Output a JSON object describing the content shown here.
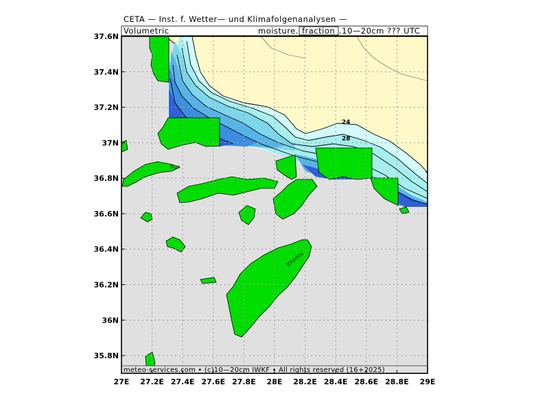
{
  "header": {
    "line1": "CETA — Inst. f. Wetter— und Klimafolgenanalysen —",
    "left_label": "Volumetric",
    "right_label_prefix": "moisture.",
    "right_label_boxed": "fraction",
    "right_label_suffix": ".10—20cm  ???  UTC"
  },
  "footer": {
    "text": "meteo-services.com  •  (c)10—20cm  IWKF  •  All rights reserved  (16+2025)"
  },
  "axes": {
    "x_ticks": [
      "27E",
      "27.2E",
      "27.4E",
      "27.6E",
      "27.8E",
      "28E",
      "28.2E",
      "28.4E",
      "28.6E",
      "28.8E",
      "29E"
    ],
    "y_ticks": [
      "37.6N",
      "37.4N",
      "37.2N",
      "37N",
      "36.8N",
      "36.6N",
      "36.4N",
      "36.2N",
      "36N",
      "35.8N"
    ],
    "lon_range": [
      27,
      29
    ],
    "lat_range": [
      35.7,
      37.6
    ],
    "grid": true
  },
  "map": {
    "place_labels": {
      "kos": "Kos",
      "rhodos": "Rhodos"
    },
    "contour_labels": {
      "c24": "24",
      "c28": "28"
    },
    "colors": {
      "sea": "#e0e0e0",
      "land_mainland": "#fff8c8",
      "island_fill": "#00dd00",
      "shade1": "#d2fbfb",
      "shade2": "#a7efef",
      "shade3": "#7ed6ec",
      "shade4": "#58b4e6",
      "shade5": "#3c8fe0",
      "shade6": "#2f60d8",
      "grid": "#999999"
    }
  }
}
